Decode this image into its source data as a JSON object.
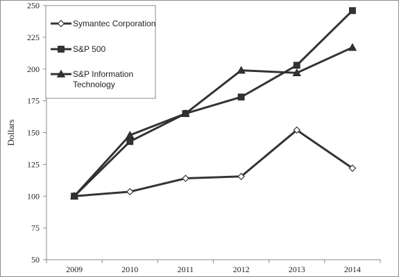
{
  "chart_data": {
    "type": "line",
    "title": "",
    "xlabel": "",
    "ylabel": "Dollars",
    "x": [
      "2009",
      "2010",
      "2011",
      "2012",
      "2013",
      "2014"
    ],
    "ylim": [
      50,
      250
    ],
    "yticks": [
      50,
      75,
      100,
      125,
      150,
      175,
      200,
      225,
      250
    ],
    "grid": false,
    "legend_position": "top-left",
    "series": [
      {
        "name": "Symantec Corporation",
        "marker": "diamond-open",
        "color": "#333333",
        "values": [
          100,
          103.5,
          114,
          115.5,
          152,
          122
        ]
      },
      {
        "name": "S&P 500",
        "marker": "square",
        "color": "#333333",
        "values": [
          100,
          143,
          165,
          178,
          203,
          246
        ]
      },
      {
        "name": "S&P Information Technology",
        "marker": "triangle",
        "color": "#333333",
        "values": [
          100,
          148,
          165,
          199,
          197,
          217
        ]
      }
    ]
  }
}
